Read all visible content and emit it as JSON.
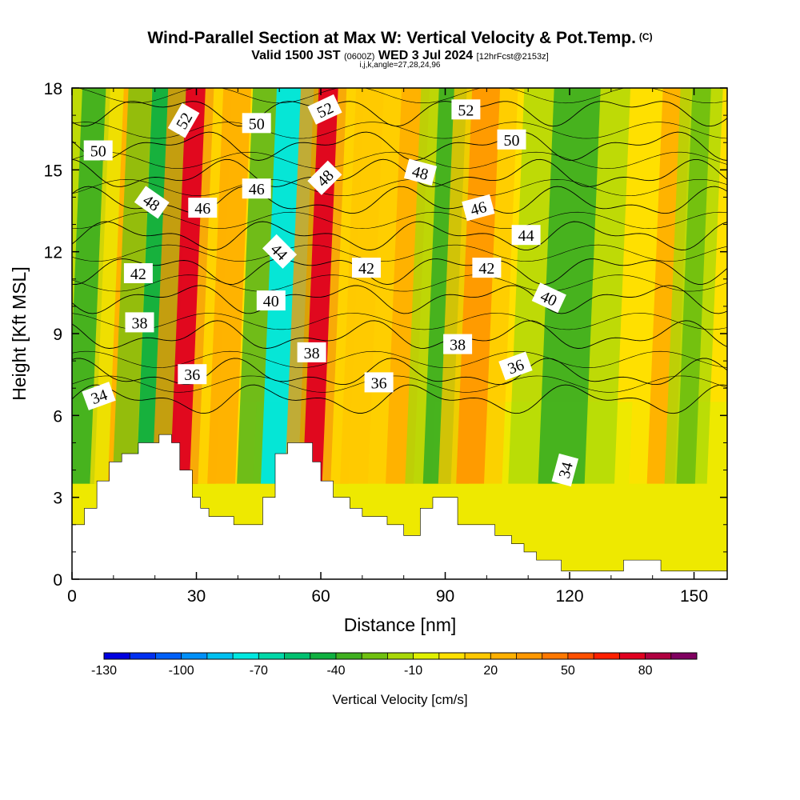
{
  "chart_data": {
    "type": "heatmap",
    "title": "Wind-Parallel Section at Max W: Vertical Velocity & Pot.Temp.",
    "title_mark": "(C)",
    "subtitle_prefix": "Valid 1500 JST",
    "subtitle_utc": "(0600Z)",
    "subtitle_date": "WED 3 Jul 2024",
    "subtitle_fcst": "[12hrFcst@2153z]",
    "subtitle_indices": "i,j,k,angle=27,28,24,96",
    "xlabel": "Distance [nm]",
    "ylabel": "Height [Kft MSL]",
    "xlim": [
      0,
      158
    ],
    "ylim": [
      0,
      18
    ],
    "xticks": [
      0,
      30,
      60,
      90,
      120,
      150
    ],
    "yticks": [
      0,
      3,
      6,
      9,
      12,
      15,
      18
    ],
    "colorbar": {
      "label": "Vertical Velocity [cm/s]",
      "tick_labels": [
        "-130",
        "-100",
        "-70",
        "-40",
        "-10",
        "20",
        "50",
        "80"
      ],
      "tick_values": [
        -130,
        -100,
        -70,
        -40,
        -10,
        20,
        50,
        80
      ],
      "min": -130,
      "max": 100,
      "colors": [
        "#0000e0",
        "#0030f0",
        "#0060f8",
        "#0090f8",
        "#00c0f0",
        "#00e8e0",
        "#00d8a8",
        "#00c070",
        "#10b040",
        "#40b020",
        "#70c010",
        "#a8d808",
        "#e0f000",
        "#ffe000",
        "#ffc800",
        "#ffb000",
        "#ff9800",
        "#ff7800",
        "#ff5000",
        "#ff2000",
        "#e00020",
        "#b00040",
        "#800060"
      ]
    },
    "velocity_streaks": [
      {
        "x": 2,
        "w": 3,
        "value": -35
      },
      {
        "x": 12,
        "w": 3,
        "value": 20
      },
      {
        "x": 20,
        "w": 4,
        "value": -50
      },
      {
        "x": 27,
        "w": 3,
        "value": 70
      },
      {
        "x": 36,
        "w": 3,
        "value": 20
      },
      {
        "x": 50,
        "w": 4,
        "value": -75
      },
      {
        "x": 59,
        "w": 3,
        "value": 70
      },
      {
        "x": 68,
        "w": 3,
        "value": 15
      },
      {
        "x": 79,
        "w": 3,
        "value": 25
      },
      {
        "x": 88,
        "w": 3,
        "value": -35
      },
      {
        "x": 96,
        "w": 3,
        "value": 35
      },
      {
        "x": 118,
        "w": 5,
        "value": -40
      },
      {
        "x": 142,
        "w": 3,
        "value": 20
      },
      {
        "x": 148,
        "w": 2,
        "value": -30
      }
    ],
    "terrain": [
      {
        "x": 0,
        "z": 2.0
      },
      {
        "x": 3,
        "z": 2.6
      },
      {
        "x": 6,
        "z": 3.6
      },
      {
        "x": 9,
        "z": 4.3
      },
      {
        "x": 12,
        "z": 4.6
      },
      {
        "x": 16,
        "z": 5.0
      },
      {
        "x": 21,
        "z": 5.3
      },
      {
        "x": 24,
        "z": 5.0
      },
      {
        "x": 26,
        "z": 4.0
      },
      {
        "x": 29,
        "z": 3.0
      },
      {
        "x": 31,
        "z": 2.6
      },
      {
        "x": 33,
        "z": 2.3
      },
      {
        "x": 37,
        "z": 2.3
      },
      {
        "x": 39,
        "z": 2.0
      },
      {
        "x": 45,
        "z": 2.0
      },
      {
        "x": 46,
        "z": 3.0
      },
      {
        "x": 49,
        "z": 4.6
      },
      {
        "x": 52,
        "z": 5.0
      },
      {
        "x": 58,
        "z": 4.3
      },
      {
        "x": 60,
        "z": 3.6
      },
      {
        "x": 63,
        "z": 3.0
      },
      {
        "x": 67,
        "z": 2.6
      },
      {
        "x": 70,
        "z": 2.3
      },
      {
        "x": 76,
        "z": 2.0
      },
      {
        "x": 80,
        "z": 1.6
      },
      {
        "x": 84,
        "z": 2.6
      },
      {
        "x": 87,
        "z": 3.0
      },
      {
        "x": 93,
        "z": 2.0
      },
      {
        "x": 102,
        "z": 1.6
      },
      {
        "x": 106,
        "z": 1.3
      },
      {
        "x": 109,
        "z": 1.0
      },
      {
        "x": 112,
        "z": 0.7
      },
      {
        "x": 115,
        "z": 0.7
      },
      {
        "x": 118,
        "z": 0.3
      },
      {
        "x": 128,
        "z": 0.3
      },
      {
        "x": 133,
        "z": 0.7
      },
      {
        "x": 142,
        "z": 0.3
      },
      {
        "x": 158,
        "z": 0.3
      }
    ],
    "theta_contours": [
      {
        "value": 34,
        "z": 6.6
      },
      {
        "value": 36,
        "z": 7.5
      },
      {
        "value": 38,
        "z": 8.9
      },
      {
        "value": 40,
        "z": 10.3
      },
      {
        "value": 42,
        "z": 11.4
      },
      {
        "value": 44,
        "z": 12.6
      },
      {
        "value": 46,
        "z": 13.8
      },
      {
        "value": 48,
        "z": 14.8
      },
      {
        "value": 50,
        "z": 15.9
      },
      {
        "value": 52,
        "z": 17.2
      }
    ],
    "contour_labels": [
      {
        "text": "50",
        "x": 6.3,
        "z": 15.7,
        "angle": 0
      },
      {
        "text": "48",
        "x": 19.2,
        "z": 13.8,
        "angle": 35
      },
      {
        "text": "42",
        "x": 16.0,
        "z": 11.2,
        "angle": 0
      },
      {
        "text": "38",
        "x": 16.3,
        "z": 9.4,
        "angle": 0
      },
      {
        "text": "36",
        "x": 29.0,
        "z": 7.5,
        "angle": 0
      },
      {
        "text": "34",
        "x": 6.5,
        "z": 6.7,
        "angle": -20
      },
      {
        "text": "52",
        "x": 27.0,
        "z": 16.8,
        "angle": -60
      },
      {
        "text": "46",
        "x": 31.5,
        "z": 13.6,
        "angle": 0
      },
      {
        "text": "50",
        "x": 44.5,
        "z": 16.7,
        "angle": 0
      },
      {
        "text": "46",
        "x": 44.5,
        "z": 14.3,
        "angle": 0
      },
      {
        "text": "44",
        "x": 50.0,
        "z": 12.0,
        "angle": 45
      },
      {
        "text": "40",
        "x": 48.0,
        "z": 10.2,
        "angle": 0
      },
      {
        "text": "52",
        "x": 61.0,
        "z": 17.2,
        "angle": -25
      },
      {
        "text": "48",
        "x": 61.0,
        "z": 14.7,
        "angle": -45
      },
      {
        "text": "38",
        "x": 57.8,
        "z": 8.3,
        "angle": 0
      },
      {
        "text": "42",
        "x": 71.0,
        "z": 11.4,
        "angle": 0
      },
      {
        "text": "36",
        "x": 74.0,
        "z": 7.2,
        "angle": 0
      },
      {
        "text": "52",
        "x": 95.0,
        "z": 17.2,
        "angle": 0
      },
      {
        "text": "48",
        "x": 84.0,
        "z": 14.9,
        "angle": 15
      },
      {
        "text": "50",
        "x": 106.0,
        "z": 16.1,
        "angle": 0
      },
      {
        "text": "46",
        "x": 98.0,
        "z": 13.6,
        "angle": -15
      },
      {
        "text": "44",
        "x": 109.5,
        "z": 12.6,
        "angle": 0
      },
      {
        "text": "42",
        "x": 100.0,
        "z": 11.4,
        "angle": 0
      },
      {
        "text": "40",
        "x": 115.0,
        "z": 10.3,
        "angle": 25
      },
      {
        "text": "38",
        "x": 93.0,
        "z": 8.6,
        "angle": 0
      },
      {
        "text": "36",
        "x": 107.0,
        "z": 7.8,
        "angle": -20
      },
      {
        "text": "34",
        "x": 119.0,
        "z": 4.0,
        "angle": -75
      }
    ]
  }
}
